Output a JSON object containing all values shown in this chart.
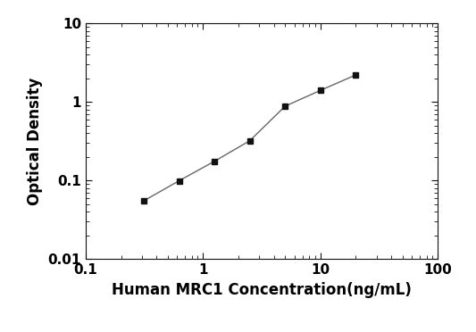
{
  "x": [
    0.313,
    0.625,
    1.25,
    2.5,
    5.0,
    10.0,
    20.0
  ],
  "y": [
    0.055,
    0.099,
    0.175,
    0.32,
    0.88,
    1.4,
    2.2
  ],
  "xlabel": "Human MRC1 Concentration(ng/mL)",
  "ylabel": "Optical Density",
  "xlim": [
    0.1,
    100
  ],
  "ylim": [
    0.01,
    10
  ],
  "line_color": "#666666",
  "marker_color": "#111111",
  "marker": "s",
  "marker_size": 5,
  "line_width": 1.0,
  "background_color": "#ffffff",
  "xticks": [
    0.1,
    1,
    10,
    100
  ],
  "yticks": [
    0.01,
    0.1,
    1,
    10
  ],
  "xlabel_fontsize": 12,
  "ylabel_fontsize": 12,
  "tick_labelsize": 11
}
